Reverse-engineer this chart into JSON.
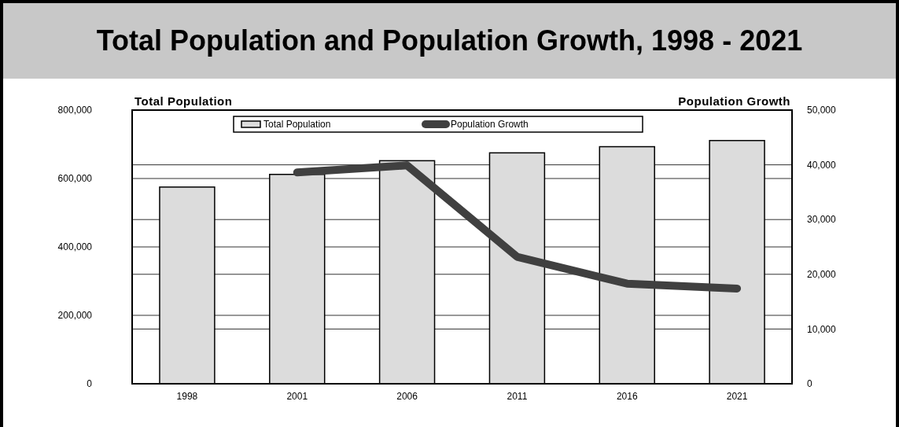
{
  "chart_data": {
    "type": "bar",
    "title": "Total Population and Population Growth, 1998 - 2021",
    "ylabel": "Total Population",
    "y2label": "Population Growth",
    "categories": [
      "1998",
      "2001",
      "2006",
      "2011",
      "2016",
      "2021"
    ],
    "series": [
      {
        "name": "Total Population",
        "color": "#dcdcdc",
        "values": [
          575000,
          612000,
          652000,
          675000,
          693000,
          711000
        ]
      },
      {
        "name": "Population Growth",
        "type": "line",
        "axis": "y2",
        "color": "#404040",
        "values": [
          null,
          38600,
          39900,
          23200,
          18300,
          17400
        ]
      }
    ],
    "ylim": [
      0,
      800000
    ],
    "yticks": [
      {
        "value": 0,
        "label": "0"
      },
      {
        "value": 200000,
        "label": "200,000"
      },
      {
        "value": 400000,
        "label": "400,000"
      },
      {
        "value": 600000,
        "label": "600,000"
      },
      {
        "value": 800000,
        "label": "800,000"
      }
    ],
    "y2lim": [
      0,
      50000
    ],
    "y2ticks": [
      {
        "value": 0,
        "label": "0"
      },
      {
        "value": 10000,
        "label": "10,000"
      },
      {
        "value": 20000,
        "label": "20,000"
      },
      {
        "value": 30000,
        "label": "30,000"
      },
      {
        "value": 40000,
        "label": "40,000"
      },
      {
        "value": 50000,
        "label": "50,000"
      }
    ],
    "grid": true,
    "legend": "top",
    "marker": "none",
    "line_style": "solid"
  }
}
